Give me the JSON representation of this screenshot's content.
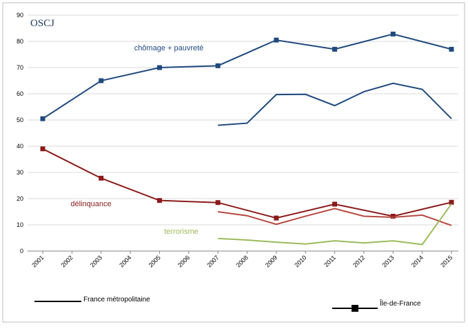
{
  "chart_data": {
    "type": "line",
    "logo": "OSCJ",
    "ylim": [
      0,
      90
    ],
    "yticks": [
      0,
      10,
      20,
      30,
      40,
      50,
      60,
      70,
      80,
      90
    ],
    "xlim": [
      2001,
      2015
    ],
    "xticks": [
      2001,
      2002,
      2003,
      2004,
      2005,
      2006,
      2007,
      2008,
      2009,
      2010,
      2011,
      2012,
      2013,
      2014,
      2015
    ],
    "grid": true,
    "series": [
      {
        "color": "#1f497d",
        "marker": true,
        "x": [
          2001,
          2003,
          2005,
          2007,
          2009,
          2011,
          2013,
          2015
        ],
        "values": [
          50.5,
          65,
          70,
          70.7,
          80.5,
          77,
          82.8,
          77
        ]
      },
      {
        "color": "#1f497d",
        "marker": false,
        "x": [
          2007,
          2008,
          2009,
          2010,
          2011,
          2012,
          2013,
          2014,
          2015
        ],
        "values": [
          48,
          48.8,
          59.7,
          59.8,
          55.5,
          60.8,
          64,
          61.7,
          50.5
        ]
      },
      {
        "color": "#8b1a1a",
        "marker": true,
        "x": [
          2001,
          2003,
          2005,
          2007,
          2009,
          2011,
          2013,
          2015
        ],
        "values": [
          39,
          27.8,
          19.3,
          18.5,
          12.6,
          17.9,
          13.3,
          18.6
        ]
      },
      {
        "color": "#b5473f",
        "marker": false,
        "x": [
          2007,
          2008,
          2009,
          2010,
          2011,
          2012,
          2013,
          2014,
          2015
        ],
        "values": [
          15,
          13.5,
          10.2,
          13.3,
          16.2,
          13.3,
          12.9,
          13.7,
          9.8
        ]
      },
      {
        "color": "#9bbb59",
        "marker": false,
        "x": [
          2007,
          2008,
          2009,
          2010,
          2011,
          2012,
          2013,
          2014,
          2015
        ],
        "values": [
          4.8,
          4.2,
          3.4,
          2.7,
          3.9,
          3.1,
          3.9,
          2.5,
          18
        ]
      }
    ],
    "annotations": [
      {
        "text": "chômage + pauvreté",
        "color": "#1f497d"
      },
      {
        "text": "délinquance",
        "color": "#8b1a1a"
      },
      {
        "text": "terrorisme",
        "color": "#9bbb59"
      }
    ],
    "legend": [
      {
        "label": "France métropolitaine",
        "marker": false
      },
      {
        "label": "Île-de-France",
        "marker": true
      }
    ]
  }
}
